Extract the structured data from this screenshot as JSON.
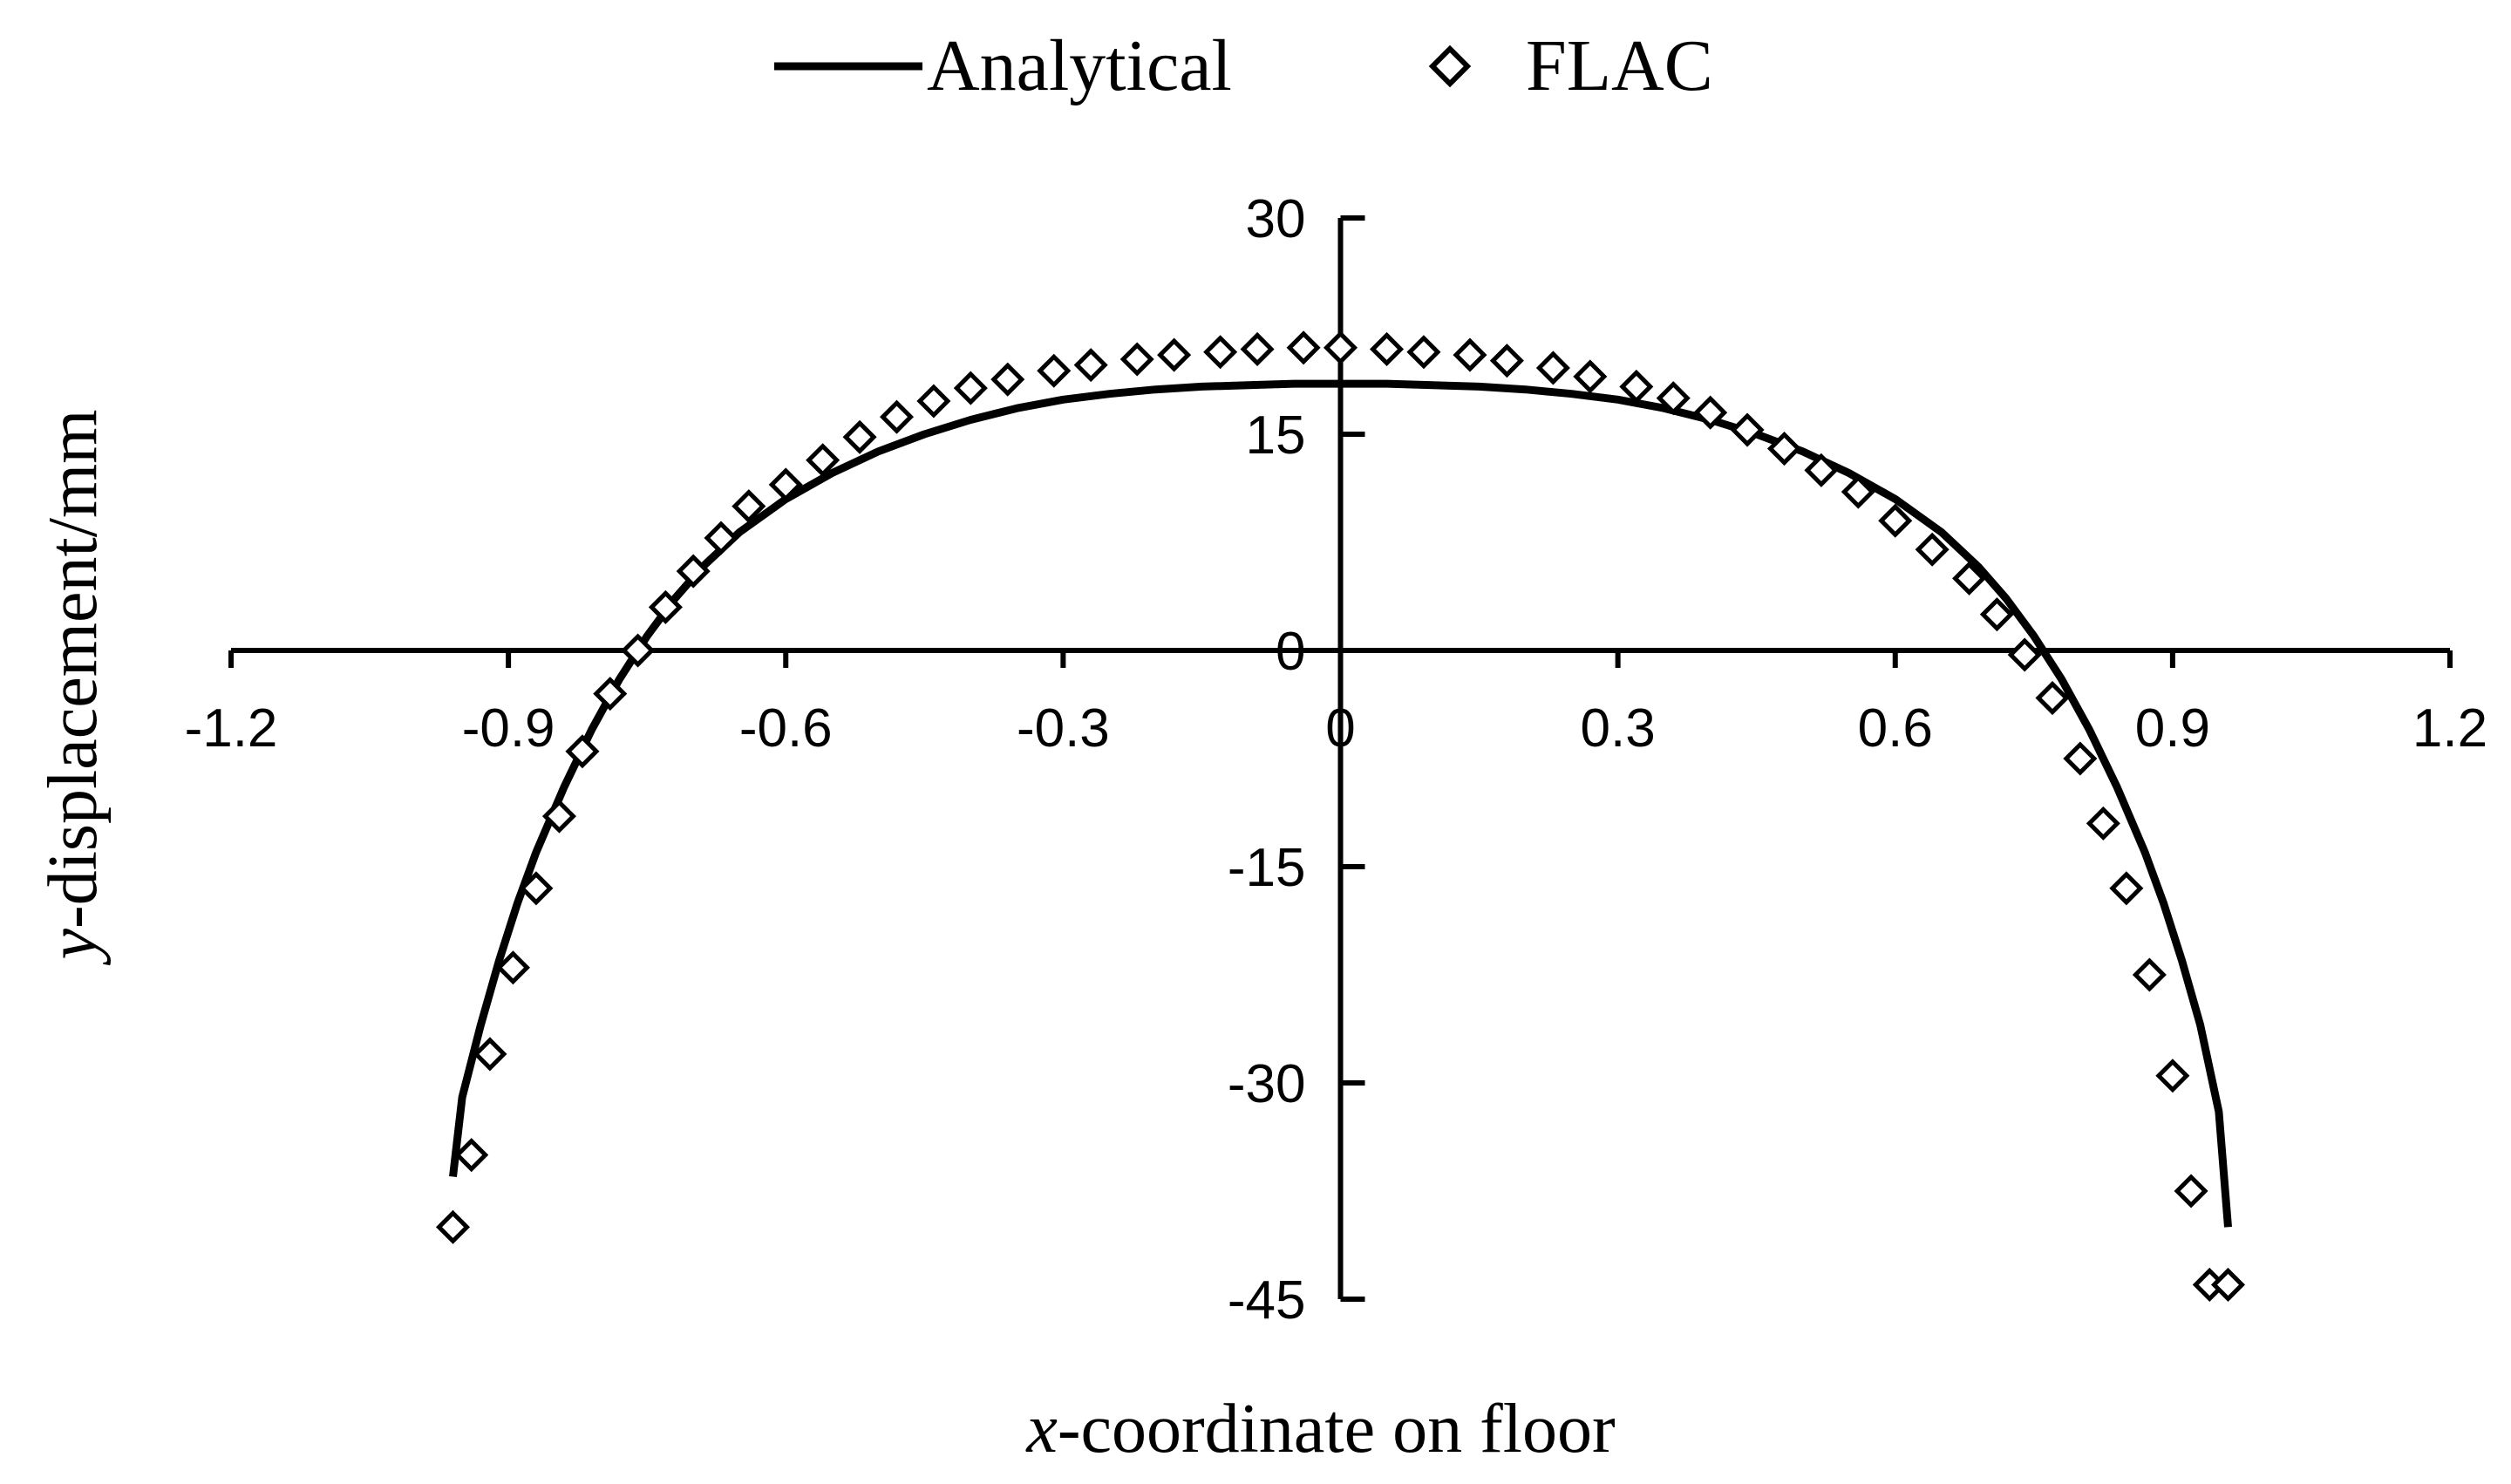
{
  "chart_data": {
    "type": "line",
    "xlabel_var": "x",
    "xlabel_rest": "-coordinate on floor",
    "ylabel_var": "y",
    "ylabel_rest": "-displacement/mm",
    "xlim": [
      -1.2,
      1.2
    ],
    "ylim": [
      -45,
      30
    ],
    "xticks": [
      "-1.2",
      "-0.9",
      "-0.6",
      "-0.3",
      "0",
      "0.3",
      "0.6",
      "0.9",
      "1.2"
    ],
    "yticks": [
      "30",
      "15",
      "0",
      "-15",
      "-30",
      "-45"
    ],
    "legend_position": "top-center",
    "grid": false,
    "series": [
      {
        "name": "Analytical",
        "style": "line",
        "color": "#000000",
        "x": [
          -0.96,
          -0.95,
          -0.93,
          -0.91,
          -0.89,
          -0.87,
          -0.84,
          -0.81,
          -0.78,
          -0.75,
          -0.72,
          -0.69,
          -0.65,
          -0.6,
          -0.55,
          -0.5,
          -0.45,
          -0.4,
          -0.35,
          -0.3,
          -0.25,
          -0.2,
          -0.15,
          -0.1,
          -0.05,
          0,
          0.05,
          0.1,
          0.15,
          0.2,
          0.25,
          0.3,
          0.35,
          0.4,
          0.45,
          0.5,
          0.55,
          0.6,
          0.65,
          0.69,
          0.72,
          0.75,
          0.78,
          0.81,
          0.84,
          0.87,
          0.89,
          0.91,
          0.93,
          0.95,
          0.96
        ],
        "y": [
          -36.5,
          -31,
          -26,
          -21.5,
          -17.5,
          -14,
          -9.5,
          -5.5,
          -2,
          1,
          3.6,
          5.8,
          8.2,
          10.5,
          12.3,
          13.8,
          15,
          16,
          16.8,
          17.4,
          17.8,
          18.1,
          18.3,
          18.4,
          18.5,
          18.5,
          18.5,
          18.4,
          18.3,
          18.1,
          17.8,
          17.4,
          16.8,
          16,
          15,
          13.8,
          12.3,
          10.5,
          8.2,
          5.8,
          3.6,
          1,
          -2,
          -5.5,
          -9.5,
          -14,
          -17.5,
          -21.5,
          -26,
          -32,
          -40
        ]
      },
      {
        "name": "FLAC",
        "style": "markers",
        "marker": "diamond",
        "color": "#000000",
        "x": [
          -0.96,
          -0.94,
          -0.92,
          -0.895,
          -0.87,
          -0.845,
          -0.82,
          -0.79,
          -0.76,
          -0.73,
          -0.7,
          -0.67,
          -0.64,
          -0.6,
          -0.56,
          -0.52,
          -0.48,
          -0.44,
          -0.4,
          -0.36,
          -0.31,
          -0.27,
          -0.22,
          -0.18,
          -0.13,
          -0.09,
          -0.04,
          0.0,
          0.05,
          0.09,
          0.14,
          0.18,
          0.23,
          0.27,
          0.32,
          0.36,
          0.4,
          0.44,
          0.48,
          0.52,
          0.56,
          0.6,
          0.64,
          0.68,
          0.71,
          0.74,
          0.77,
          0.8,
          0.825,
          0.85,
          0.875,
          0.9,
          0.92,
          0.94,
          0.96
        ],
        "y": [
          -40,
          -35,
          -28,
          -22,
          -16.5,
          -11.5,
          -7,
          -3,
          0,
          3,
          5.5,
          7.8,
          10,
          11.5,
          13.2,
          14.8,
          16.2,
          17.3,
          18.2,
          18.8,
          19.4,
          19.8,
          20.2,
          20.5,
          20.7,
          20.9,
          21,
          21,
          20.9,
          20.7,
          20.5,
          20.1,
          19.6,
          19,
          18.3,
          17.5,
          16.5,
          15.3,
          14,
          12.5,
          11,
          9,
          7,
          5,
          2.5,
          -0.3,
          -3.3,
          -7.5,
          -12,
          -16.5,
          -22.5,
          -29.5,
          -37.5,
          -44,
          -44
        ]
      }
    ]
  }
}
